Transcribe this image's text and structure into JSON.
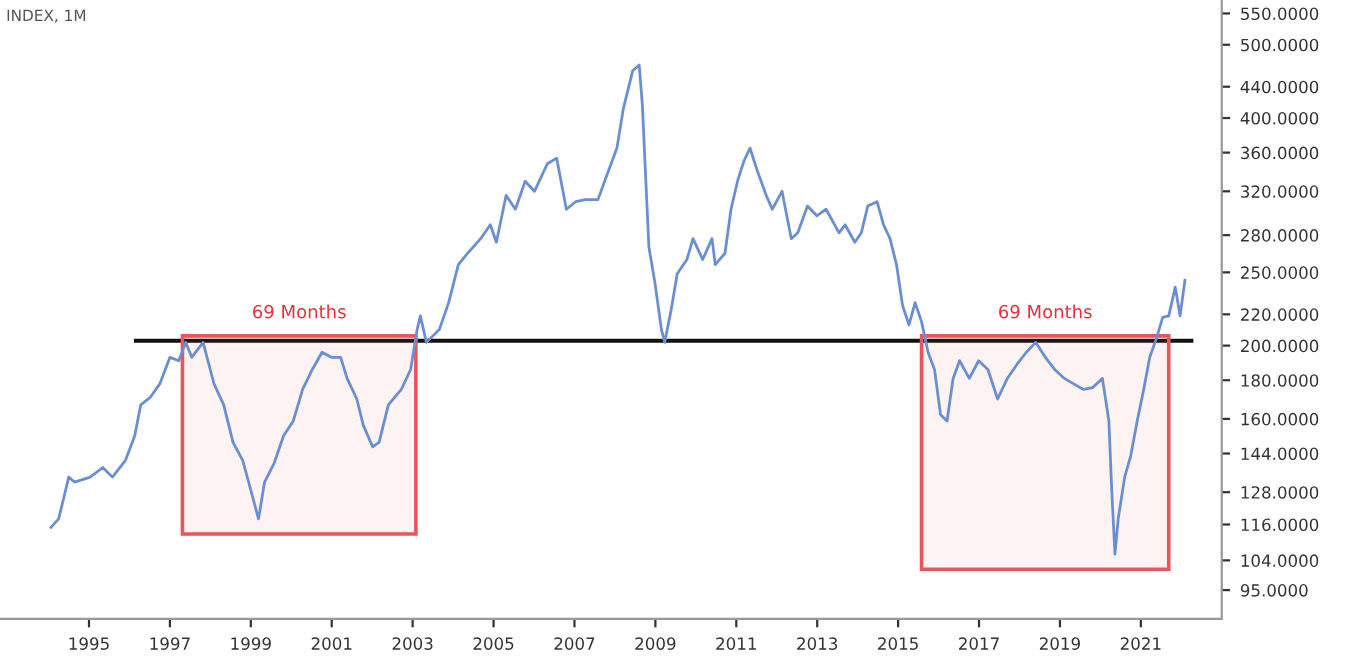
{
  "chart_data": {
    "type": "line",
    "title": "INDEX, 1M",
    "series": [
      {
        "color": "#6a8fd0",
        "x": [
          1994.06,
          1994.25,
          1994.5,
          1994.64,
          1995.03,
          1995.34,
          1995.58,
          1995.9,
          1996.13,
          1996.28,
          1996.52,
          1996.75,
          1997.0,
          1997.22,
          1997.39,
          1997.54,
          1997.82,
          1998.09,
          1998.33,
          1998.56,
          1998.8,
          1999.03,
          1999.19,
          1999.34,
          1999.58,
          1999.81,
          2000.05,
          2000.28,
          2000.52,
          2000.76,
          2000.99,
          2001.22,
          2001.38,
          2001.62,
          2001.78,
          2002.01,
          2002.17,
          2002.4,
          2002.72,
          2002.95,
          2003.11,
          2003.19,
          2003.34,
          2003.66,
          2003.89,
          2004.13,
          2004.36,
          2004.68,
          2004.92,
          2005.07,
          2005.31,
          2005.54,
          2005.78,
          2006.01,
          2006.33,
          2006.56,
          2006.8,
          2007.03,
          2007.27,
          2007.58,
          2007.81,
          2008.05,
          2008.21,
          2008.44,
          2008.6,
          2008.68,
          2008.75,
          2008.84,
          2008.99,
          2009.15,
          2009.23,
          2009.39,
          2009.54,
          2009.78,
          2009.93,
          2010.17,
          2010.4,
          2010.48,
          2010.72,
          2010.87,
          2011.03,
          2011.19,
          2011.34,
          2011.5,
          2011.74,
          2011.89,
          2012.13,
          2012.36,
          2012.52,
          2012.76,
          2012.99,
          2013.22,
          2013.54,
          2013.69,
          2013.93,
          2014.09,
          2014.25,
          2014.48,
          2014.64,
          2014.8,
          2014.96,
          2015.11,
          2015.27,
          2015.42,
          2015.58,
          2015.74,
          2015.9,
          2016.05,
          2016.21,
          2016.36,
          2016.52,
          2016.76,
          2016.99,
          2017.22,
          2017.46,
          2017.7,
          2017.94,
          2018.17,
          2018.4,
          2018.64,
          2018.87,
          2019.11,
          2019.34,
          2019.58,
          2019.81,
          2020.05,
          2020.21,
          2020.28,
          2020.36,
          2020.44,
          2020.6,
          2020.75,
          2020.91,
          2021.07,
          2021.22,
          2021.38,
          2021.54,
          2021.69,
          2021.85,
          2021.97,
          2022.09
        ],
        "values": [
          115,
          118,
          134,
          132,
          134,
          138,
          134,
          141,
          152,
          167,
          171,
          178,
          193,
          191,
          202,
          193,
          202,
          178,
          167,
          149,
          141,
          127,
          118,
          132,
          140,
          152,
          159,
          175,
          186,
          196,
          193,
          193,
          181,
          170,
          157,
          147,
          149,
          167,
          175,
          186,
          210,
          219,
          202,
          210,
          228,
          256,
          265,
          277,
          289,
          274,
          316,
          303,
          330,
          320,
          348,
          354,
          303,
          310,
          312,
          312,
          337,
          365,
          412,
          462,
          470,
          415,
          343,
          270,
          242,
          210,
          202,
          223,
          249,
          260,
          277,
          260,
          277,
          256,
          265,
          303,
          330,
          351,
          365,
          343,
          316,
          303,
          320,
          277,
          282,
          306,
          297,
          303,
          282,
          289,
          274,
          282,
          306,
          310,
          289,
          277,
          256,
          226,
          213,
          228,
          215,
          196,
          186,
          162,
          159,
          181,
          191,
          181,
          191,
          186,
          170,
          181,
          189,
          196,
          202,
          193,
          186,
          181,
          178,
          175,
          176,
          181,
          159,
          129,
          106,
          118,
          134,
          143,
          159,
          175,
          193,
          204,
          218,
          219,
          239,
          219,
          244
        ]
      },
      {
        "color": "#111111",
        "x": [
          1996.16,
          2022.25
        ],
        "values": [
          203,
          203
        ]
      }
    ],
    "bands": [
      {
        "axis": "x",
        "from": 1997.31,
        "to": 2003.08,
        "label": "69 Months",
        "color": "#e8555a"
      },
      {
        "axis": "x",
        "from": 2015.58,
        "to": 2021.69,
        "label": "69 Months",
        "color": "#e8555a"
      }
    ],
    "log": true,
    "xlim": [
      1992.8,
      2023.0
    ],
    "xticks": [
      1995,
      1997,
      1999,
      2001,
      2003,
      2005,
      2007,
      2009,
      2011,
      2013,
      2015,
      2017,
      2019,
      2021
    ],
    "ylim": [
      87,
      573
    ],
    "yticks": [
      {
        "value": 95,
        "label": "95.0000"
      },
      {
        "value": 104,
        "label": "104.0000"
      },
      {
        "value": 116,
        "label": "116.0000"
      },
      {
        "value": 128,
        "label": "128.0000"
      },
      {
        "value": 144,
        "label": "144.0000"
      },
      {
        "value": 160,
        "label": "160.0000"
      },
      {
        "value": 180,
        "label": "180.0000"
      },
      {
        "value": 200,
        "label": "200.0000"
      },
      {
        "value": 220,
        "label": "220.0000"
      },
      {
        "value": 250,
        "label": "250.0000"
      },
      {
        "value": 280,
        "label": "280.0000"
      },
      {
        "value": 320,
        "label": "320.0000"
      },
      {
        "value": 360,
        "label": "360.0000"
      },
      {
        "value": 400,
        "label": "400.0000"
      },
      {
        "value": 440,
        "label": "440.0000"
      },
      {
        "value": 500,
        "label": "500.0000"
      },
      {
        "value": 550,
        "label": "550.0000"
      }
    ],
    "grid": false,
    "legend": false,
    "marker": "none",
    "line_style": "solid"
  }
}
